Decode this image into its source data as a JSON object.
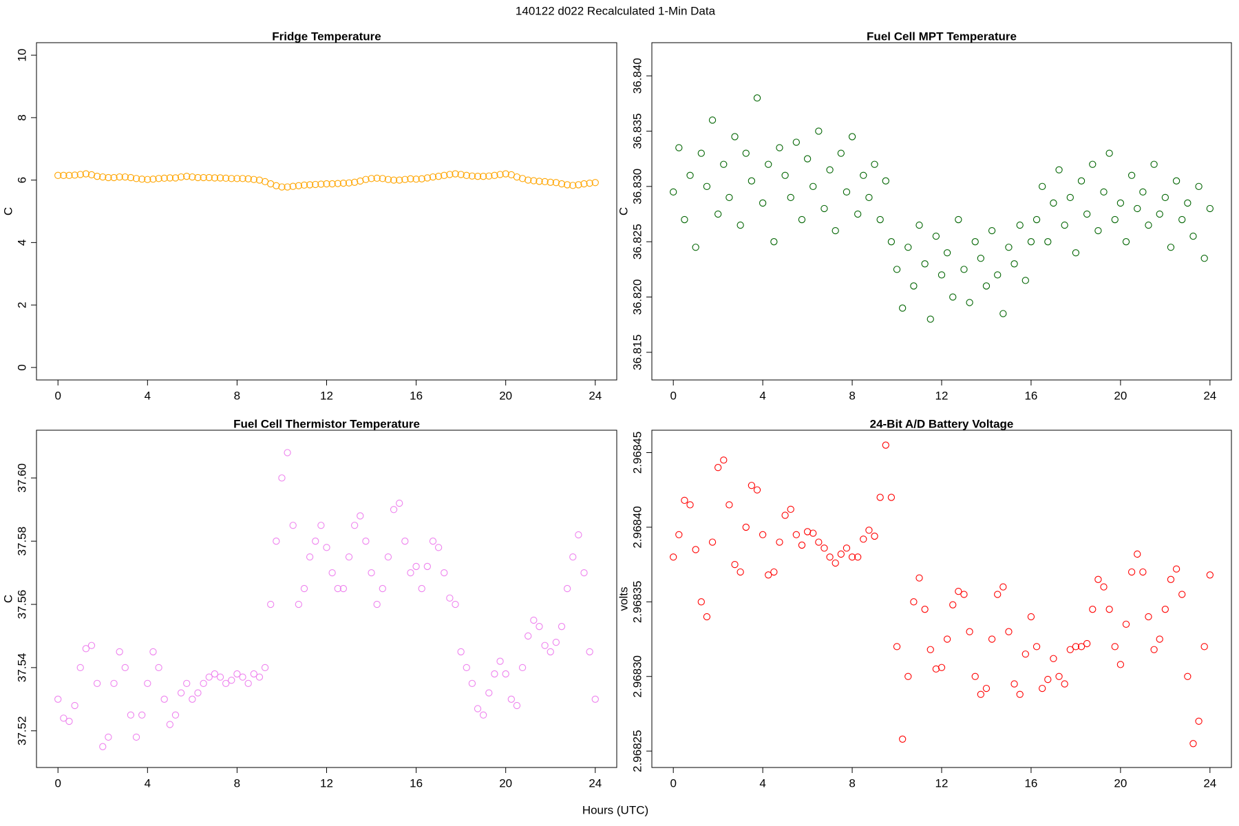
{
  "title": "140122   d022   Recalculated 1-Min Data",
  "xlabel": "Hours (UTC)",
  "chart_data": [
    {
      "type": "scatter",
      "title": "Fridge Temperature",
      "ylabel": "C",
      "color": "#FFA500",
      "xlim": [
        -0.96,
        24.96
      ],
      "xticks": [
        0,
        4,
        8,
        12,
        16,
        20,
        24
      ],
      "ylim": [
        -0.4,
        10.4
      ],
      "yticks": [
        0,
        2,
        4,
        6,
        8,
        10
      ],
      "x": [
        0,
        0.25,
        0.5,
        0.75,
        1,
        1.25,
        1.5,
        1.75,
        2,
        2.25,
        2.5,
        2.75,
        3,
        3.25,
        3.5,
        3.75,
        4,
        4.25,
        4.5,
        4.75,
        5,
        5.25,
        5.5,
        5.75,
        6,
        6.25,
        6.5,
        6.75,
        7,
        7.25,
        7.5,
        7.75,
        8,
        8.25,
        8.5,
        8.75,
        9,
        9.25,
        9.5,
        9.75,
        10,
        10.25,
        10.5,
        10.75,
        11,
        11.25,
        11.5,
        11.75,
        12,
        12.25,
        12.5,
        12.75,
        13,
        13.25,
        13.5,
        13.75,
        14,
        14.25,
        14.5,
        14.75,
        15,
        15.25,
        15.5,
        15.75,
        16,
        16.25,
        16.5,
        16.75,
        17,
        17.25,
        17.5,
        17.75,
        18,
        18.25,
        18.5,
        18.75,
        19,
        19.25,
        19.5,
        19.75,
        20,
        20.25,
        20.5,
        20.75,
        21,
        21.25,
        21.5,
        21.75,
        22,
        22.25,
        22.5,
        22.75,
        23,
        23.25,
        23.5,
        23.75,
        24
      ],
      "values": [
        6.15,
        6.15,
        6.15,
        6.16,
        6.18,
        6.2,
        6.17,
        6.12,
        6.1,
        6.08,
        6.08,
        6.1,
        6.1,
        6.08,
        6.05,
        6.03,
        6.02,
        6.03,
        6.05,
        6.06,
        6.07,
        6.07,
        6.1,
        6.12,
        6.1,
        6.08,
        6.08,
        6.08,
        6.07,
        6.07,
        6.06,
        6.05,
        6.05,
        6.05,
        6.04,
        6.02,
        6.0,
        5.95,
        5.88,
        5.82,
        5.78,
        5.78,
        5.8,
        5.82,
        5.84,
        5.85,
        5.86,
        5.87,
        5.88,
        5.88,
        5.89,
        5.9,
        5.91,
        5.93,
        5.97,
        6.02,
        6.05,
        6.06,
        6.05,
        6.02,
        6.0,
        6.0,
        6.02,
        6.04,
        6.03,
        6.04,
        6.07,
        6.1,
        6.12,
        6.15,
        6.18,
        6.2,
        6.18,
        6.15,
        6.13,
        6.12,
        6.12,
        6.13,
        6.15,
        6.18,
        6.2,
        6.17,
        6.1,
        6.05,
        6.0,
        5.98,
        5.96,
        5.95,
        5.93,
        5.92,
        5.88,
        5.85,
        5.83,
        5.85,
        5.88,
        5.9,
        5.92
      ]
    },
    {
      "type": "scatter",
      "title": "Fuel Cell MPT Temperature",
      "ylabel": "C",
      "color": "#006400",
      "xlim": [
        -0.96,
        24.96
      ],
      "xticks": [
        0,
        4,
        8,
        12,
        16,
        20,
        24
      ],
      "ylim": [
        36.8125,
        36.843
      ],
      "yticks": [
        36.815,
        {
          "value": 36.82,
          "label": "36.820"
        },
        36.825,
        {
          "value": 36.83,
          "label": "36.830"
        },
        36.835,
        {
          "value": 36.84,
          "label": "36.840"
        }
      ],
      "x": [
        0,
        0.25,
        0.5,
        0.75,
        1,
        1.25,
        1.5,
        1.75,
        2,
        2.25,
        2.5,
        2.75,
        3,
        3.25,
        3.5,
        3.75,
        4,
        4.25,
        4.5,
        4.75,
        5,
        5.25,
        5.5,
        5.75,
        6,
        6.25,
        6.5,
        6.75,
        7,
        7.25,
        7.5,
        7.75,
        8,
        8.25,
        8.5,
        8.75,
        9,
        9.25,
        9.5,
        9.75,
        10,
        10.25,
        10.5,
        10.75,
        11,
        11.25,
        11.5,
        11.75,
        12,
        12.25,
        12.5,
        12.75,
        13,
        13.25,
        13.5,
        13.75,
        14,
        14.25,
        14.5,
        14.75,
        15,
        15.25,
        15.5,
        15.75,
        16,
        16.25,
        16.5,
        16.75,
        17,
        17.25,
        17.5,
        17.75,
        18,
        18.25,
        18.5,
        18.75,
        19,
        19.25,
        19.5,
        19.75,
        20,
        20.25,
        20.5,
        20.75,
        21,
        21.25,
        21.5,
        21.75,
        22,
        22.25,
        22.5,
        22.75,
        23,
        23.25,
        23.5,
        23.75,
        24
      ],
      "values": [
        36.8295,
        36.8335,
        36.827,
        36.831,
        36.8245,
        36.833,
        36.83,
        36.836,
        36.8275,
        36.832,
        36.829,
        36.8345,
        36.8265,
        36.833,
        36.8305,
        36.838,
        36.8285,
        36.832,
        36.825,
        36.8335,
        36.831,
        36.829,
        36.834,
        36.827,
        36.8325,
        36.83,
        36.835,
        36.828,
        36.8315,
        36.826,
        36.833,
        36.8295,
        36.8345,
        36.8275,
        36.831,
        36.829,
        36.832,
        36.827,
        36.8305,
        36.825,
        36.8225,
        36.819,
        36.8245,
        36.821,
        36.8265,
        36.823,
        36.818,
        36.8255,
        36.822,
        36.824,
        36.82,
        36.827,
        36.8225,
        36.8195,
        36.825,
        36.8235,
        36.821,
        36.826,
        36.822,
        36.8185,
        36.8245,
        36.823,
        36.8265,
        36.8215,
        36.825,
        36.827,
        36.83,
        36.825,
        36.8285,
        36.8315,
        36.8265,
        36.829,
        36.824,
        36.8305,
        36.8275,
        36.832,
        36.826,
        36.8295,
        36.833,
        36.827,
        36.8285,
        36.825,
        36.831,
        36.828,
        36.8295,
        36.8265,
        36.832,
        36.8275,
        36.829,
        36.8245,
        36.8305,
        36.827,
        36.8285,
        36.8255,
        36.83,
        36.8235,
        36.828
      ]
    },
    {
      "type": "scatter",
      "title": "Fuel Cell Thermistor Temperature",
      "ylabel": "C",
      "color": "#EE82EE",
      "xlim": [
        -0.96,
        24.96
      ],
      "xticks": [
        0,
        4,
        8,
        12,
        16,
        20,
        24
      ],
      "ylim": [
        37.5084,
        37.6151
      ],
      "yticks": [
        37.52,
        37.54,
        37.56,
        37.58,
        {
          "value": 37.6,
          "label": "37.60"
        }
      ],
      "x": [
        0,
        0.25,
        0.5,
        0.75,
        1,
        1.25,
        1.5,
        1.75,
        2,
        2.25,
        2.5,
        2.75,
        3,
        3.25,
        3.5,
        3.75,
        4,
        4.25,
        4.5,
        4.75,
        5,
        5.25,
        5.5,
        5.75,
        6,
        6.25,
        6.5,
        6.75,
        7,
        7.25,
        7.5,
        7.75,
        8,
        8.25,
        8.5,
        8.75,
        9,
        9.25,
        9.5,
        9.75,
        10,
        10.25,
        10.5,
        10.75,
        11,
        11.25,
        11.5,
        11.75,
        12,
        12.25,
        12.5,
        12.75,
        13,
        13.25,
        13.5,
        13.75,
        14,
        14.25,
        14.5,
        14.75,
        15,
        15.25,
        15.5,
        15.75,
        16,
        16.25,
        16.5,
        16.75,
        17,
        17.25,
        17.5,
        17.75,
        18,
        18.25,
        18.5,
        18.75,
        19,
        19.25,
        19.5,
        19.75,
        20,
        20.25,
        20.5,
        20.75,
        21,
        21.25,
        21.5,
        21.75,
        22,
        22.25,
        22.5,
        22.75,
        23,
        23.25,
        23.5,
        23.75,
        24
      ],
      "values": [
        37.53,
        37.524,
        37.523,
        37.528,
        37.54,
        37.546,
        37.547,
        37.535,
        37.515,
        37.518,
        37.535,
        37.545,
        37.54,
        37.525,
        37.518,
        37.525,
        37.535,
        37.545,
        37.54,
        37.53,
        37.522,
        37.525,
        37.532,
        37.535,
        37.53,
        37.532,
        37.535,
        37.537,
        37.538,
        37.537,
        37.535,
        37.536,
        37.538,
        37.537,
        37.535,
        37.538,
        37.537,
        37.54,
        37.56,
        37.58,
        37.6,
        37.608,
        37.585,
        37.56,
        37.565,
        37.575,
        37.58,
        37.585,
        37.578,
        37.57,
        37.565,
        37.565,
        37.575,
        37.585,
        37.588,
        37.58,
        37.57,
        37.56,
        37.565,
        37.575,
        37.59,
        37.592,
        37.58,
        37.57,
        37.572,
        37.565,
        37.572,
        37.58,
        37.578,
        37.57,
        37.562,
        37.56,
        37.545,
        37.54,
        37.535,
        37.527,
        37.525,
        37.532,
        37.538,
        37.542,
        37.538,
        37.53,
        37.528,
        37.54,
        37.55,
        37.555,
        37.553,
        37.547,
        37.545,
        37.548,
        37.553,
        37.565,
        37.575,
        37.582,
        37.57,
        37.545,
        37.53
      ]
    },
    {
      "type": "scatter",
      "title": "24-Bit A/D Battery Voltage",
      "ylabel": "volts",
      "color": "#FF0000",
      "xlim": [
        -0.96,
        24.96
      ],
      "xticks": [
        0,
        4,
        8,
        12,
        16,
        20,
        24
      ],
      "ylim": [
        2.968239,
        2.968465
      ],
      "yticks": [
        2.96825,
        {
          "value": 2.9683,
          "label": "2.96830"
        },
        2.96835,
        {
          "value": 2.9684,
          "label": "2.96840"
        },
        2.96845
      ],
      "x": [
        0,
        0.25,
        0.5,
        0.75,
        1,
        1.25,
        1.5,
        1.75,
        2,
        2.25,
        2.5,
        2.75,
        3,
        3.25,
        3.5,
        3.75,
        4,
        4.25,
        4.5,
        4.75,
        5,
        5.25,
        5.5,
        5.75,
        6,
        6.25,
        6.5,
        6.75,
        7,
        7.25,
        7.5,
        7.75,
        8,
        8.25,
        8.5,
        8.75,
        9,
        9.25,
        9.5,
        9.75,
        10,
        10.25,
        10.5,
        10.75,
        11,
        11.25,
        11.5,
        11.75,
        12,
        12.25,
        12.5,
        12.75,
        13,
        13.25,
        13.5,
        13.75,
        14,
        14.25,
        14.5,
        14.75,
        15,
        15.25,
        15.5,
        15.75,
        16,
        16.25,
        16.5,
        16.75,
        17,
        17.25,
        17.5,
        17.75,
        18,
        18.25,
        18.5,
        18.75,
        19,
        19.25,
        19.5,
        19.75,
        20,
        20.25,
        20.5,
        20.75,
        21,
        21.25,
        21.5,
        21.75,
        22,
        22.25,
        22.5,
        22.75,
        23,
        23.25,
        23.5,
        23.75,
        24
      ],
      "values": [
        2.96838,
        2.968395,
        2.968418,
        2.968415,
        2.968385,
        2.96835,
        2.96834,
        2.96839,
        2.96844,
        2.968445,
        2.968415,
        2.968375,
        2.96837,
        2.9684,
        2.968428,
        2.968425,
        2.968395,
        2.968368,
        2.96837,
        2.96839,
        2.968408,
        2.968412,
        2.968395,
        2.968388,
        2.968397,
        2.968396,
        2.96839,
        2.968386,
        2.96838,
        2.968376,
        2.968382,
        2.968386,
        2.96838,
        2.96838,
        2.968392,
        2.968398,
        2.968394,
        2.96842,
        2.968455,
        2.96842,
        2.96832,
        2.968258,
        2.9683,
        2.96835,
        2.968366,
        2.968345,
        2.968318,
        2.968305,
        2.968306,
        2.968325,
        2.968348,
        2.968357,
        2.968355,
        2.96833,
        2.9683,
        2.968288,
        2.968292,
        2.968325,
        2.968355,
        2.96836,
        2.96833,
        2.968295,
        2.968288,
        2.968315,
        2.96834,
        2.96832,
        2.968292,
        2.968298,
        2.968312,
        2.9683,
        2.968295,
        2.968318,
        2.96832,
        2.96832,
        2.968322,
        2.968345,
        2.968365,
        2.96836,
        2.968345,
        2.96832,
        2.968308,
        2.968335,
        2.96837,
        2.968382,
        2.96837,
        2.96834,
        2.968318,
        2.968325,
        2.968345,
        2.968365,
        2.968372,
        2.968355,
        2.9683,
        2.968255,
        2.96827,
        2.96832,
        2.968368
      ]
    }
  ]
}
